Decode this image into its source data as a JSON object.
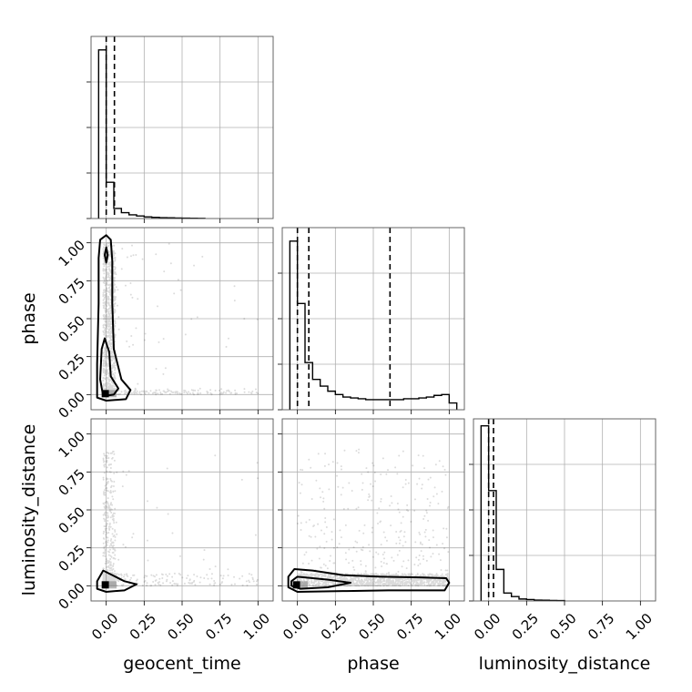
{
  "chart_data": {
    "type": "corner",
    "parameters": [
      "geocent_time",
      "phase",
      "luminosity_distance"
    ],
    "tick_values": [
      0.0,
      0.25,
      0.5,
      0.75,
      1.0
    ],
    "tick_labels": [
      "0.00",
      "0.25",
      "0.50",
      "0.75",
      "1.00"
    ],
    "axis_range": [
      -0.1,
      1.1
    ],
    "grid": true,
    "colors": {
      "line": "#000000",
      "grid": "#b0b0b0",
      "points": "#000000"
    },
    "marginals": [
      {
        "parameter": "geocent_time",
        "bin_edges": [
          -0.05,
          0.0,
          0.05,
          0.1,
          0.15,
          0.2,
          0.25,
          0.3,
          0.35,
          0.4,
          0.45,
          0.5,
          0.55,
          0.6,
          0.65
        ],
        "counts": [
          100,
          21.5,
          6,
          3.5,
          2.2,
          1.5,
          1,
          0.7,
          0.5,
          0.4,
          0.3,
          0.2,
          0.15,
          0.1
        ],
        "quantiles": [
          0.0,
          0.054
        ],
        "ymax": 108
      },
      {
        "parameter": "phase",
        "bin_edges": [
          -0.05,
          0.0,
          0.05,
          0.1,
          0.15,
          0.2,
          0.25,
          0.3,
          0.35,
          0.4,
          0.45,
          0.5,
          0.55,
          0.6,
          0.65,
          0.7,
          0.75,
          0.8,
          0.85,
          0.9,
          0.95,
          1.0,
          1.05
        ],
        "counts": [
          100,
          63,
          28,
          18,
          14,
          11,
          9,
          7.5,
          7,
          6.5,
          6,
          6,
          6,
          6,
          6,
          6.5,
          6.5,
          7,
          7.5,
          8.5,
          9,
          4
        ],
        "quantiles": [
          0.0,
          0.075,
          0.61
        ],
        "ymax": 108
      },
      {
        "parameter": "luminosity_distance",
        "bin_edges": [
          -0.05,
          0.0,
          0.05,
          0.1,
          0.15,
          0.2,
          0.25,
          0.3,
          0.35,
          0.4,
          0.45,
          0.5
        ],
        "counts": [
          100,
          63,
          18,
          4.5,
          2.5,
          1.1,
          0.8,
          0.5,
          0.4,
          0.3,
          0.2
        ],
        "quantiles": [
          0.0,
          0.032
        ],
        "ymax": 104
      }
    ],
    "joint": [
      {
        "x": "geocent_time",
        "y": "phase",
        "contours": [
          [
            [
              -0.04,
              1.02
            ],
            [
              0.0,
              1.05
            ],
            [
              0.03,
              1.02
            ],
            [
              0.04,
              0.88
            ],
            [
              0.04,
              0.6
            ],
            [
              0.05,
              0.3
            ],
            [
              0.1,
              0.1
            ],
            [
              0.16,
              0.03
            ],
            [
              0.13,
              -0.03
            ],
            [
              0.0,
              -0.04
            ],
            [
              -0.06,
              -0.02
            ],
            [
              -0.06,
              0.2
            ],
            [
              -0.05,
              0.6
            ],
            [
              -0.05,
              0.9
            ]
          ],
          [
            [
              -0.03,
              0.3
            ],
            [
              -0.01,
              0.37
            ],
            [
              0.02,
              0.28
            ],
            [
              0.03,
              0.12
            ],
            [
              0.08,
              0.04
            ],
            [
              0.05,
              0.0
            ],
            [
              -0.02,
              -0.01
            ],
            [
              -0.04,
              0.1
            ]
          ],
          [
            [
              -0.01,
              0.92
            ],
            [
              0.0,
              0.97
            ],
            [
              0.01,
              0.92
            ],
            [
              0.0,
              0.87
            ]
          ]
        ]
      },
      {
        "x": "geocent_time",
        "y": "luminosity_distance",
        "contours": [
          [
            [
              -0.06,
              0.03
            ],
            [
              -0.02,
              0.1
            ],
            [
              0.04,
              0.07
            ],
            [
              0.12,
              0.03
            ],
            [
              0.2,
              0.01
            ],
            [
              0.12,
              -0.03
            ],
            [
              0.0,
              -0.04
            ],
            [
              -0.06,
              -0.02
            ]
          ]
        ]
      },
      {
        "x": "phase",
        "y": "luminosity_distance",
        "contours": [
          [
            [
              -0.06,
              0.06
            ],
            [
              -0.02,
              0.11
            ],
            [
              0.1,
              0.1
            ],
            [
              0.3,
              0.07
            ],
            [
              0.55,
              0.06
            ],
            [
              0.8,
              0.055
            ],
            [
              0.98,
              0.05
            ],
            [
              1.0,
              0.02
            ],
            [
              0.97,
              -0.03
            ],
            [
              0.6,
              -0.03
            ],
            [
              0.3,
              -0.035
            ],
            [
              0.0,
              -0.04
            ],
            [
              -0.06,
              -0.01
            ]
          ],
          [
            [
              -0.04,
              0.03
            ],
            [
              0.0,
              0.06
            ],
            [
              0.2,
              0.04
            ],
            [
              0.35,
              0.02
            ],
            [
              0.2,
              -0.01
            ],
            [
              0.02,
              -0.02
            ],
            [
              -0.04,
              0.0
            ]
          ]
        ]
      }
    ]
  }
}
